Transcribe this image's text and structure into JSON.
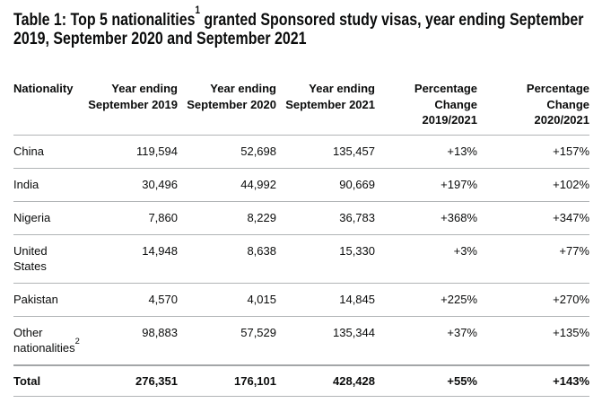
{
  "title": {
    "line1_before_sup": "Table 1: Top 5 nationalities",
    "line1_sup": "1",
    "line1_after_sup": " granted Sponsored study visas, year ending September",
    "line2": "2019, September 2020 and September 2021"
  },
  "colors": {
    "text": "#0b0c0c",
    "row_border": "#b1b4b6",
    "total_row_top_border": "#a3a6a8",
    "background": "#ffffff"
  },
  "table": {
    "columns": [
      {
        "id": "nationality",
        "label_lines": [
          "Nationality"
        ],
        "align": "left"
      },
      {
        "id": "ye-september-2019",
        "label_lines": [
          "Year ending",
          "September 2019"
        ],
        "align": "right"
      },
      {
        "id": "ye-september-2020",
        "label_lines": [
          "Year ending",
          "September 2020"
        ],
        "align": "right"
      },
      {
        "id": "ye-september-2021",
        "label_lines": [
          "Year ending",
          "September 2021"
        ],
        "align": "right"
      },
      {
        "id": "pct-change-2019-2021",
        "label_lines": [
          "Percentage",
          "Change",
          "2019/2021"
        ],
        "align": "right"
      },
      {
        "id": "pct-change-2020-2021",
        "label_lines": [
          "Percentage",
          "Change",
          "2020/2021"
        ],
        "align": "right"
      }
    ],
    "rows": [
      {
        "id": "china",
        "label_lines": [
          "China"
        ],
        "values": [
          "119,594",
          "52,698",
          "135,457",
          "+13%",
          "+157%"
        ]
      },
      {
        "id": "india",
        "label_lines": [
          "India"
        ],
        "values": [
          "30,496",
          "44,992",
          "90,669",
          "+197%",
          "+102%"
        ]
      },
      {
        "id": "nigeria",
        "label_lines": [
          "Nigeria"
        ],
        "values": [
          "7,860",
          "8,229",
          "36,783",
          "+368%",
          "+347%"
        ]
      },
      {
        "id": "united-states",
        "label_lines": [
          "United",
          "States"
        ],
        "values": [
          "14,948",
          "8,638",
          "15,330",
          "+3%",
          "+77%"
        ]
      },
      {
        "id": "pakistan",
        "label_lines": [
          "Pakistan"
        ],
        "values": [
          "4,570",
          "4,015",
          "14,845",
          "+225%",
          "+270%"
        ]
      },
      {
        "id": "other-nationalities",
        "label_lines": [
          "Other",
          "nationalities"
        ],
        "label_sup": "2",
        "values": [
          "98,883",
          "57,529",
          "135,344",
          "+37%",
          "+135%"
        ]
      }
    ],
    "total_row": {
      "id": "total",
      "label_lines": [
        "Total"
      ],
      "values": [
        "276,351",
        "176,101",
        "428,428",
        "+55%",
        "+143%"
      ]
    }
  }
}
